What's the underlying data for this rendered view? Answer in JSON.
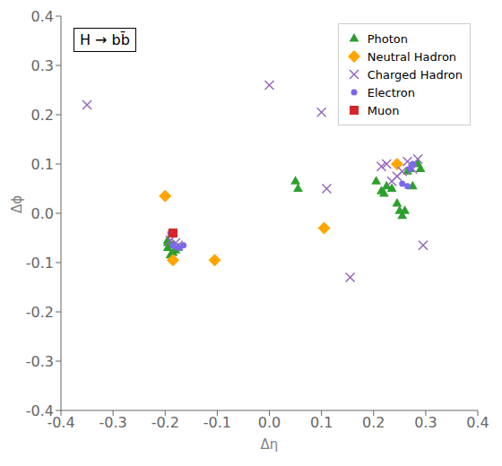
{
  "chart_data": {
    "type": "scatter",
    "xlabel": "Δη",
    "ylabel": "Δϕ",
    "annotations": [
      "H → bb̄"
    ],
    "xlim": [
      -0.4,
      0.4
    ],
    "ylim": [
      -0.4,
      0.4
    ],
    "xticks": [
      -0.4,
      -0.3,
      -0.2,
      -0.1,
      {
        "value": 0.0,
        "label": "0.0"
      },
      0.1,
      0.2,
      0.3,
      0.4
    ],
    "yticks": [
      -0.4,
      -0.3,
      -0.2,
      -0.1,
      {
        "value": 0.0,
        "label": "0.0"
      },
      0.1,
      0.2,
      0.3,
      0.4
    ],
    "grid": false,
    "legend": "upper right",
    "series": [
      {
        "name": "Photon",
        "color": "#2ca02c",
        "marker": "triangle",
        "x": [
          -0.195,
          -0.185,
          -0.18,
          -0.175,
          -0.19,
          -0.195,
          -0.185,
          -0.195,
          0.05,
          0.055,
          0.205,
          0.215,
          0.22,
          0.225,
          0.235,
          0.245,
          0.25,
          0.255,
          0.26,
          0.265,
          0.27,
          0.275,
          0.285,
          0.29
        ],
        "y": [
          -0.055,
          -0.065,
          -0.075,
          -0.07,
          -0.085,
          -0.07,
          -0.08,
          -0.06,
          0.065,
          0.05,
          0.065,
          0.045,
          0.04,
          0.055,
          0.05,
          0.02,
          0.005,
          -0.005,
          0.005,
          0.085,
          0.09,
          0.055,
          0.1,
          0.09
        ]
      },
      {
        "name": "Neutral Hadron",
        "color": "#ffa500",
        "marker": "diamond",
        "x": [
          -0.2,
          -0.185,
          -0.105,
          0.105,
          0.245
        ],
        "y": [
          0.035,
          -0.095,
          -0.095,
          -0.03,
          0.1
        ]
      },
      {
        "name": "Charged Hadron",
        "color": "#9467bd",
        "marker": "x",
        "x": [
          -0.35,
          -0.19,
          -0.18,
          -0.175,
          0.0,
          0.1,
          0.11,
          0.155,
          0.215,
          0.225,
          0.235,
          0.245,
          0.255,
          0.265,
          0.275,
          0.285,
          0.295
        ],
        "y": [
          0.22,
          -0.055,
          -0.06,
          -0.065,
          0.26,
          0.205,
          0.05,
          -0.13,
          0.095,
          0.1,
          0.065,
          0.075,
          0.085,
          0.105,
          0.09,
          0.11,
          -0.065
        ]
      },
      {
        "name": "Electron",
        "color": "#7b68ee",
        "marker": "circle",
        "x": [
          -0.19,
          -0.185,
          -0.175,
          -0.165,
          0.265,
          0.255,
          0.27,
          0.275
        ],
        "y": [
          -0.04,
          -0.065,
          -0.07,
          -0.065,
          0.055,
          0.06,
          0.09,
          0.1
        ]
      },
      {
        "name": "Muon",
        "color": "#d62728",
        "marker": "square",
        "x": [
          -0.185
        ],
        "y": [
          -0.04
        ]
      }
    ]
  }
}
